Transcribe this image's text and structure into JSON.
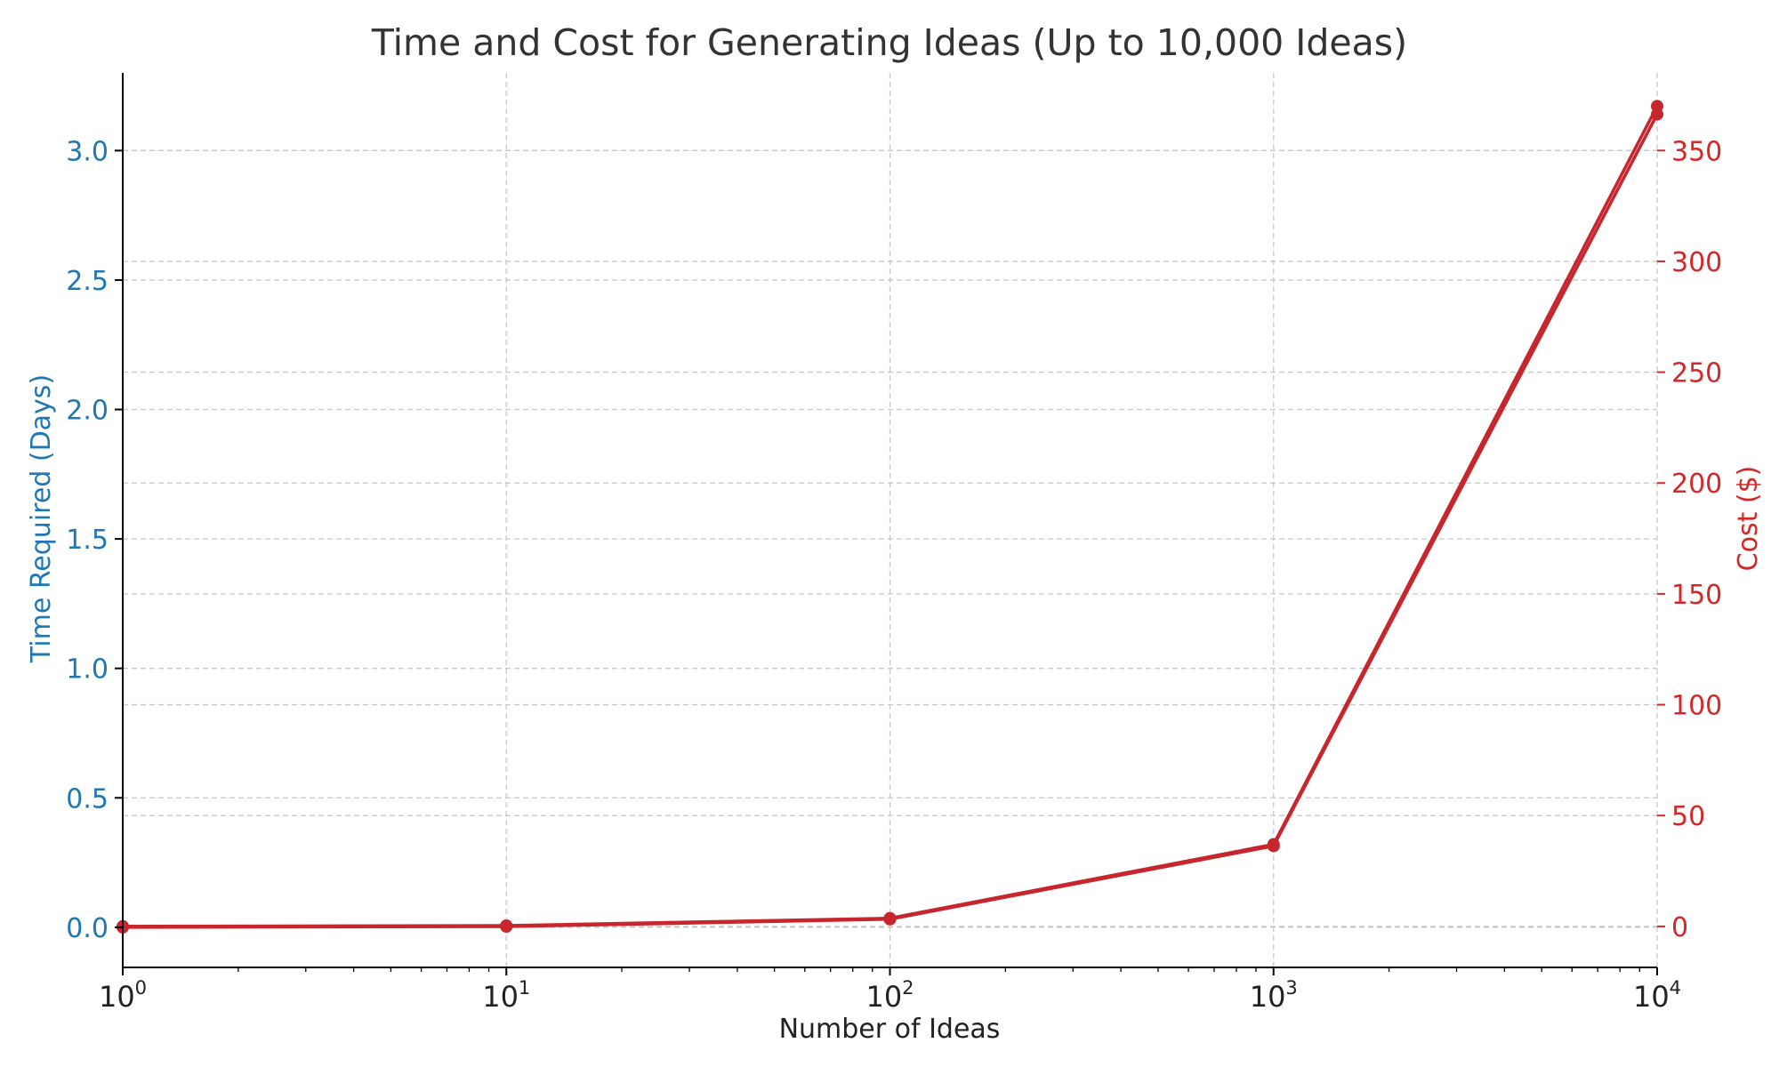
{
  "chart_data": {
    "type": "line",
    "title": "Time and Cost for Generating Ideas (Up to 10,000 Ideas)",
    "xlabel": "Number of Ideas",
    "x_scale": "log",
    "xlim": [
      1,
      10000
    ],
    "x_ticks": [
      {
        "value": 1,
        "base": "10",
        "exp": "0"
      },
      {
        "value": 10,
        "base": "10",
        "exp": "1"
      },
      {
        "value": 100,
        "base": "10",
        "exp": "2"
      },
      {
        "value": 1000,
        "base": "10",
        "exp": "3"
      },
      {
        "value": 10000,
        "base": "10",
        "exp": "4"
      }
    ],
    "ylabel_left": "Time Required (Days)",
    "ylim_left": [
      -0.155,
      3.3
    ],
    "y_ticks_left": [
      "0.0",
      "0.5",
      "1.0",
      "1.5",
      "2.0",
      "2.5",
      "3.0"
    ],
    "ylabel_right": "Cost ($)",
    "ylim_right": [
      -18.5,
      385
    ],
    "y_ticks_right": [
      "0",
      "50",
      "100",
      "150",
      "200",
      "250",
      "300",
      "350"
    ],
    "grid": true,
    "colors": {
      "left_axis": "#1f77b4",
      "right_axis": "#d62728",
      "series": "#c8262d"
    },
    "series": [
      {
        "axis": "left",
        "x": [
          1,
          10,
          100,
          1000,
          10000
        ],
        "values": [
          0.0,
          0.003,
          0.031,
          0.314,
          3.14
        ]
      },
      {
        "axis": "right",
        "x": [
          1,
          10,
          100,
          1000,
          10000
        ],
        "values": [
          0.037,
          0.37,
          3.7,
          37,
          370
        ]
      }
    ]
  }
}
